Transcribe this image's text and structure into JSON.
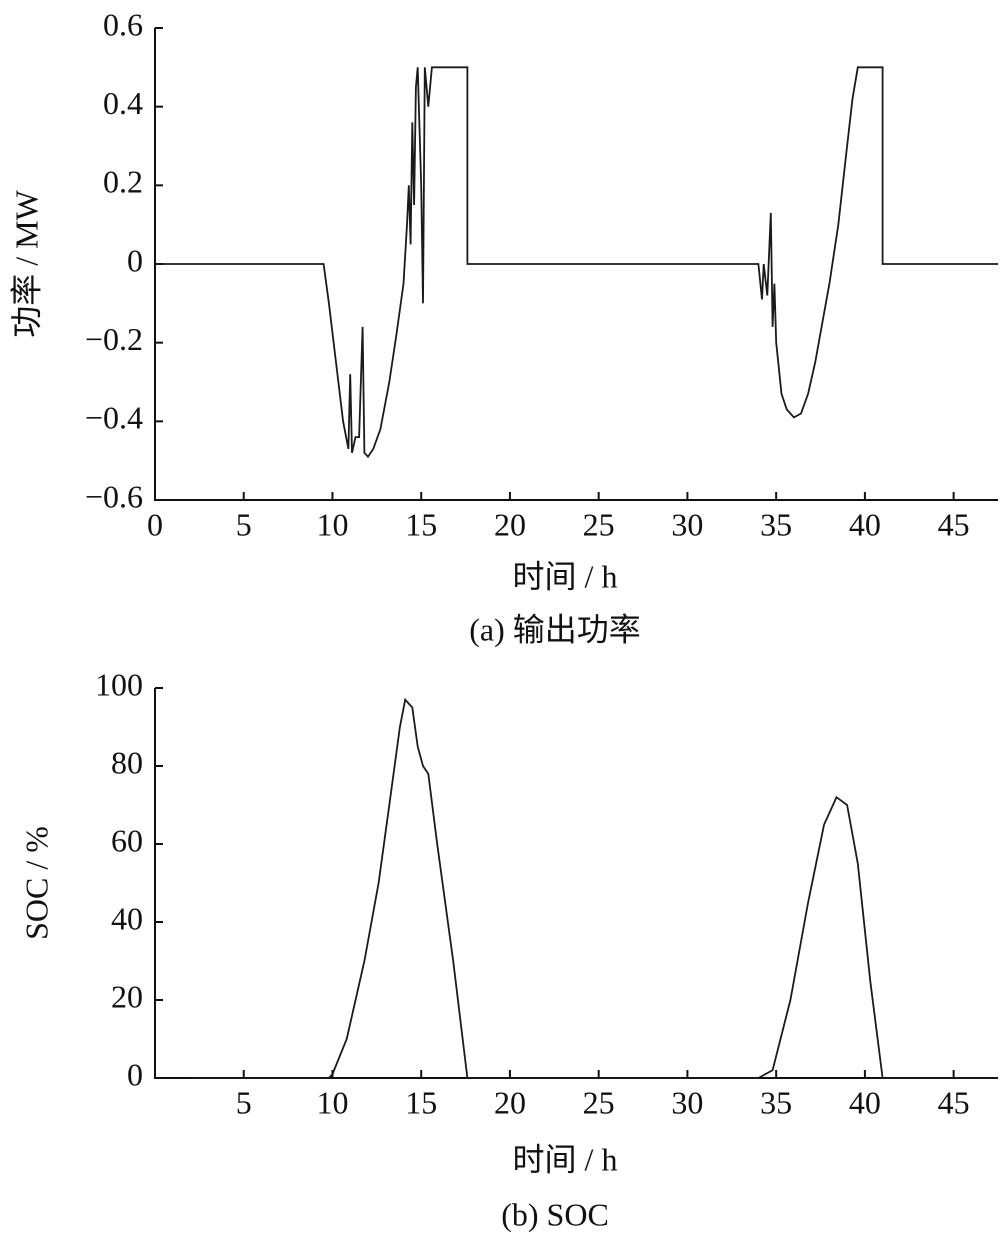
{
  "chart_data": [
    {
      "type": "line",
      "y_label": "功率 / MW",
      "x_label": "时间 / h",
      "caption": "(a) 输出功率",
      "xlim": [
        0,
        47.5
      ],
      "xticks": [
        0,
        5,
        10,
        15,
        20,
        25,
        30,
        35,
        40,
        45
      ],
      "ylim": [
        -0.6,
        0.6
      ],
      "yticks": [
        {
          "value": -0.6,
          "label": "−0.6"
        },
        {
          "value": -0.4,
          "label": "−0.4"
        },
        {
          "value": -0.2,
          "label": "−0.2"
        },
        0,
        0.2,
        0.4,
        0.6
      ],
      "series": [
        {
          "color": "#1a1a1a",
          "x": [
            0,
            9.5,
            9.8,
            10.2,
            10.6,
            10.9,
            11.0,
            11.1,
            11.3,
            11.5,
            11.7,
            11.8,
            12.0,
            12.3,
            12.7,
            13.2,
            13.6,
            14.0,
            14.2,
            14.3,
            14.4,
            14.5,
            14.6,
            14.7,
            14.8,
            15.0,
            15.1,
            15.2,
            15.4,
            15.6,
            16,
            17.6,
            17.6,
            33.8,
            34.0,
            34.2,
            34.3,
            34.5,
            34.7,
            34.8,
            34.9,
            35.0,
            35.3,
            35.6,
            36.0,
            36.4,
            36.8,
            37.2,
            37.6,
            38.0,
            38.5,
            39.0,
            39.3,
            39.6,
            41.0,
            41.0,
            47.5
          ],
          "values": [
            0,
            0,
            -0.1,
            -0.25,
            -0.4,
            -0.47,
            -0.28,
            -0.48,
            -0.44,
            -0.44,
            -0.16,
            -0.48,
            -0.49,
            -0.47,
            -0.42,
            -0.3,
            -0.18,
            -0.05,
            0.1,
            0.2,
            0.05,
            0.36,
            0.15,
            0.45,
            0.5,
            0.2,
            -0.1,
            0.5,
            0.4,
            0.5,
            0.5,
            0.5,
            0,
            0,
            0,
            -0.09,
            0,
            -0.08,
            0.13,
            -0.16,
            -0.05,
            -0.2,
            -0.33,
            -0.37,
            -0.39,
            -0.38,
            -0.33,
            -0.25,
            -0.15,
            -0.05,
            0.1,
            0.3,
            0.42,
            0.5,
            0.5,
            0,
            0
          ]
        }
      ]
    },
    {
      "type": "line",
      "y_label": "SOC / %",
      "x_label": "时间 / h",
      "caption": "(b)  SOC",
      "xlim": [
        0,
        47.5
      ],
      "xticks": [
        5,
        10,
        15,
        20,
        25,
        30,
        35,
        40,
        45
      ],
      "ylim": [
        0,
        100
      ],
      "yticks": [
        0,
        20,
        40,
        60,
        80,
        100
      ],
      "series": [
        {
          "color": "#1a1a1a",
          "x": [
            2,
            9.8,
            10,
            10.8,
            11.8,
            12.6,
            13.2,
            13.8,
            14.1,
            14.5,
            14.8,
            15.1,
            15.4,
            15.9,
            16.8,
            17.6,
            34.0,
            34.8,
            35.8,
            36.8,
            37.7,
            38.4,
            39.0,
            39.6,
            40.3,
            41.0,
            47.5
          ],
          "values": [
            0,
            0,
            1,
            10,
            30,
            50,
            70,
            90,
            97,
            95,
            85,
            80,
            78,
            60,
            30,
            0,
            0,
            2,
            20,
            45,
            65,
            72,
            70,
            55,
            25,
            0,
            0
          ]
        }
      ]
    }
  ]
}
